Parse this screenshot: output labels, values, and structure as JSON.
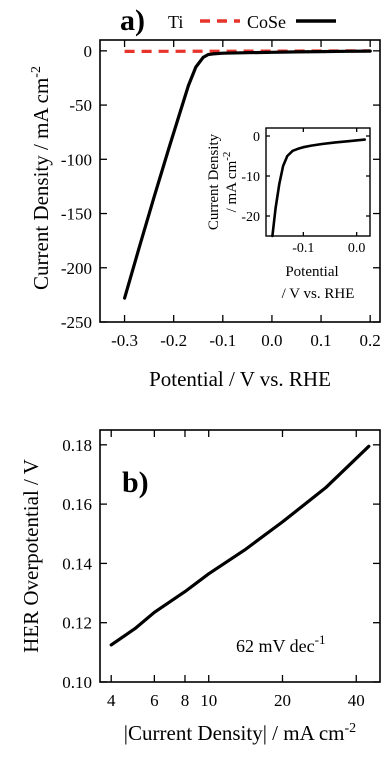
{
  "chart_data": [
    {
      "type": "line",
      "panel_label": "a)",
      "legend": [
        {
          "name": "Ti",
          "color": "#e8332b",
          "style": "dashed"
        },
        {
          "name": "CoSe",
          "color": "#000000",
          "style": "solid"
        }
      ],
      "xlabel": "Potential / V vs. RHE",
      "ylabel": "Current Density / mA cm",
      "ylabel_sup": "-2",
      "xlim": [
        -0.35,
        0.22
      ],
      "ylim": [
        -250,
        10
      ],
      "xticks": [
        -0.3,
        -0.2,
        -0.1,
        0.0,
        0.1,
        0.2
      ],
      "xtick_labels": [
        "-0.3",
        "-0.2",
        "-0.1",
        "0.0",
        "0.1",
        "0.2"
      ],
      "yticks": [
        0,
        -50,
        -100,
        -150,
        -200,
        -250
      ],
      "ytick_labels": [
        "0",
        "-50",
        "-100",
        "-150",
        "-200",
        "-250"
      ],
      "series": [
        {
          "name": "Ti",
          "color": "#e8332b",
          "x": [
            -0.3,
            -0.2,
            -0.1,
            0.0,
            0.1,
            0.2
          ],
          "y": [
            -0.5,
            -0.4,
            -0.3,
            -0.2,
            -0.1,
            0.0
          ]
        },
        {
          "name": "CoSe",
          "color": "#000000",
          "x": [
            -0.3,
            -0.27,
            -0.24,
            -0.21,
            -0.19,
            -0.17,
            -0.155,
            -0.14,
            -0.13,
            -0.12,
            -0.1,
            -0.05,
            0.0,
            0.05,
            0.1,
            0.15,
            0.2
          ],
          "y": [
            -228,
            -181,
            -135,
            -90,
            -61,
            -32,
            -15,
            -6,
            -3.5,
            -2.8,
            -2.2,
            -1.7,
            -1.3,
            -1.0,
            -0.7,
            -0.4,
            -0.2
          ]
        }
      ],
      "inset": {
        "xlabel_line1": "Potential",
        "xlabel_line2": "/ V vs. RHE",
        "ylabel_line1": "Current Density",
        "ylabel_line2": "/ mA cm",
        "ylabel_sup": "-2",
        "xlim": [
          -0.17,
          0.025
        ],
        "ylim": [
          -25,
          2
        ],
        "xticks": [
          -0.1,
          0.0
        ],
        "xtick_labels": [
          "-0.1",
          "0.0"
        ],
        "yticks": [
          0,
          -10,
          -20
        ],
        "ytick_labels": [
          "0",
          "-10",
          "-20"
        ],
        "series": [
          {
            "name": "CoSe",
            "color": "#000000",
            "x": [
              -0.158,
              -0.152,
              -0.145,
              -0.138,
              -0.13,
              -0.12,
              -0.11,
              -0.1,
              -0.085,
              -0.065,
              -0.04,
              -0.015,
              0.015
            ],
            "y": [
              -25,
              -18,
              -12,
              -7.5,
              -5,
              -3.7,
              -3.2,
              -2.8,
              -2.4,
              -2.0,
              -1.6,
              -1.3,
              -0.9
            ]
          }
        ]
      }
    },
    {
      "type": "line",
      "panel_label": "b)",
      "xlabel": "|Current Density| / mA cm",
      "xlabel_sup": "-2",
      "ylabel": "HER Overpotential / V",
      "xscale": "log",
      "xlim": [
        3.6,
        50
      ],
      "ylim": [
        0.1,
        0.185
      ],
      "xticks": [
        4,
        6,
        8,
        10,
        20,
        40
      ],
      "xtick_labels": [
        "4",
        "6",
        "8",
        "10",
        "20",
        "40"
      ],
      "yticks": [
        0.1,
        0.12,
        0.14,
        0.16,
        0.18
      ],
      "ytick_labels": [
        "0.10",
        "0.12",
        "0.14",
        "0.16",
        "0.18"
      ],
      "annotation": "62 mV dec",
      "annotation_sup": "-1",
      "series": [
        {
          "name": "CoSe",
          "color": "#000000",
          "x": [
            4,
            5,
            6,
            8,
            10,
            14,
            20,
            30,
            45
          ],
          "y": [
            0.1125,
            0.118,
            0.1235,
            0.1305,
            0.1365,
            0.1445,
            0.154,
            0.1655,
            0.1795
          ]
        }
      ]
    }
  ]
}
